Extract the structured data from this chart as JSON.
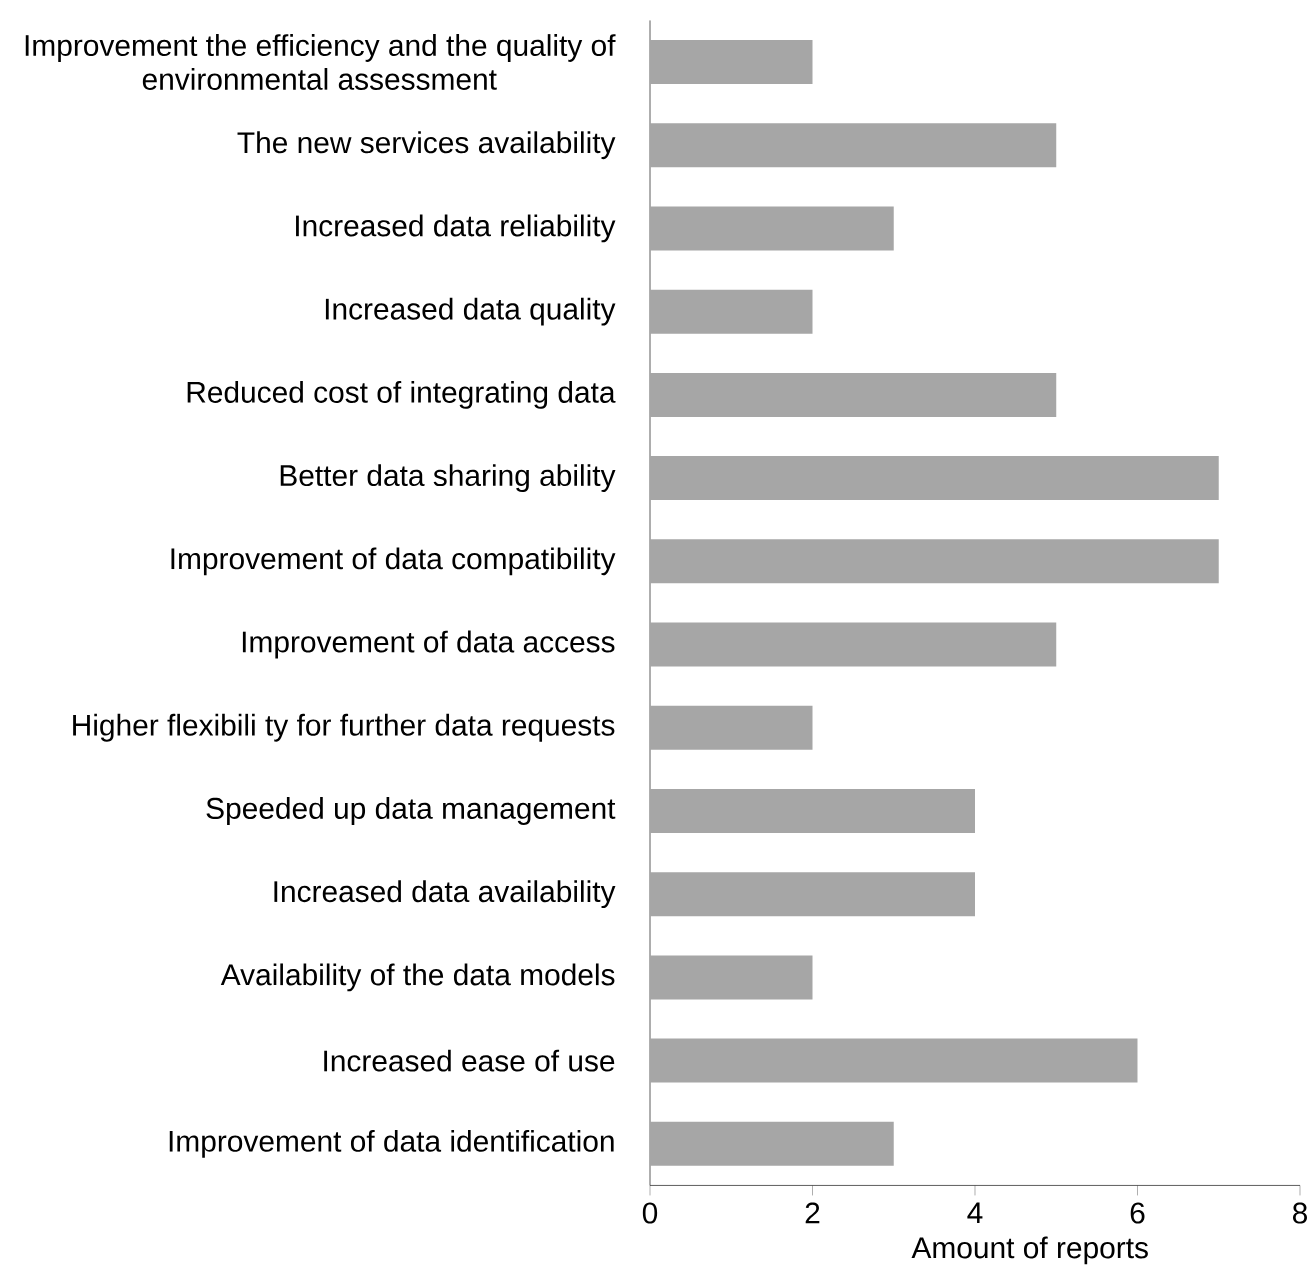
{
  "chart_data": {
    "type": "bar",
    "orientation": "horizontal",
    "xlabel": "Amount of reports",
    "categories": [
      "Improvement the efficiency and the quality of environmental assessment",
      "The new services availability",
      "Increased data reliability",
      "Increased data quality",
      "Reduced cost of integrating data",
      "Better data sharing ability",
      "Improvement of data compatibility",
      "Improvement of data access",
      "Higher flexibili ty for further data requests",
      "Speeded up data management",
      "Increased data availability",
      "Availability of the data models",
      "Increased ease of use",
      "Improvement of data identification"
    ],
    "values": [
      2,
      5,
      3,
      2,
      5,
      7,
      7,
      5,
      2,
      4,
      4,
      2,
      6,
      3
    ],
    "color": "#a6a6a6",
    "xlim": [
      0,
      8
    ],
    "xticks": [
      0,
      2,
      4,
      6,
      8
    ],
    "grid": false
  }
}
